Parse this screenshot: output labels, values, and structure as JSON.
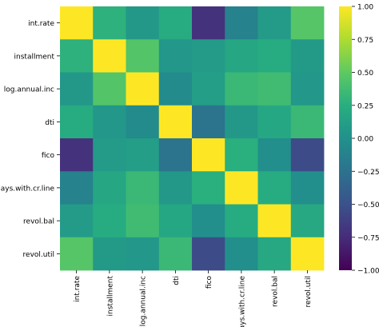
{
  "chart_data": {
    "type": "heatmap",
    "title": "",
    "xlabel": "",
    "ylabel": "",
    "rows": [
      "int.rate",
      "installment",
      "log.annual.inc",
      "dti",
      "fico",
      "days.with.cr.line",
      "revol.bal",
      "revol.util"
    ],
    "columns": [
      "int.rate",
      "installment",
      "log.annual.inc",
      "dti",
      "fico",
      "days.with.cr.line",
      "revol.bal",
      "revol.util"
    ],
    "values": [
      [
        1.0,
        0.28,
        0.06,
        0.22,
        -0.71,
        -0.12,
        0.09,
        0.46
      ],
      [
        0.28,
        1.0,
        0.45,
        0.05,
        0.09,
        0.18,
        0.23,
        0.08
      ],
      [
        0.06,
        0.45,
        1.0,
        -0.05,
        0.11,
        0.34,
        0.37,
        0.05
      ],
      [
        0.22,
        0.05,
        -0.05,
        1.0,
        -0.24,
        0.06,
        0.19,
        0.34
      ],
      [
        -0.71,
        0.09,
        0.11,
        -0.24,
        1.0,
        0.26,
        -0.02,
        -0.54
      ],
      [
        -0.12,
        0.18,
        0.34,
        0.06,
        0.26,
        1.0,
        0.23,
        -0.02
      ],
      [
        0.09,
        0.23,
        0.37,
        0.19,
        -0.02,
        0.23,
        1.0,
        0.2
      ],
      [
        0.46,
        0.08,
        0.05,
        0.34,
        -0.54,
        -0.02,
        0.2,
        1.0
      ]
    ],
    "colorbar": {
      "colormap": "viridis",
      "vmin": -1.0,
      "vmax": 1.0,
      "ticks": [
        1.0,
        0.75,
        0.5,
        0.25,
        0.0,
        -0.25,
        -0.5,
        -0.75,
        -1.0
      ],
      "tick_labels": [
        "1.00",
        "0.75",
        "0.50",
        "0.25",
        "0.00",
        "−0.25",
        "−0.50",
        "−0.75",
        "−1.00"
      ]
    }
  }
}
